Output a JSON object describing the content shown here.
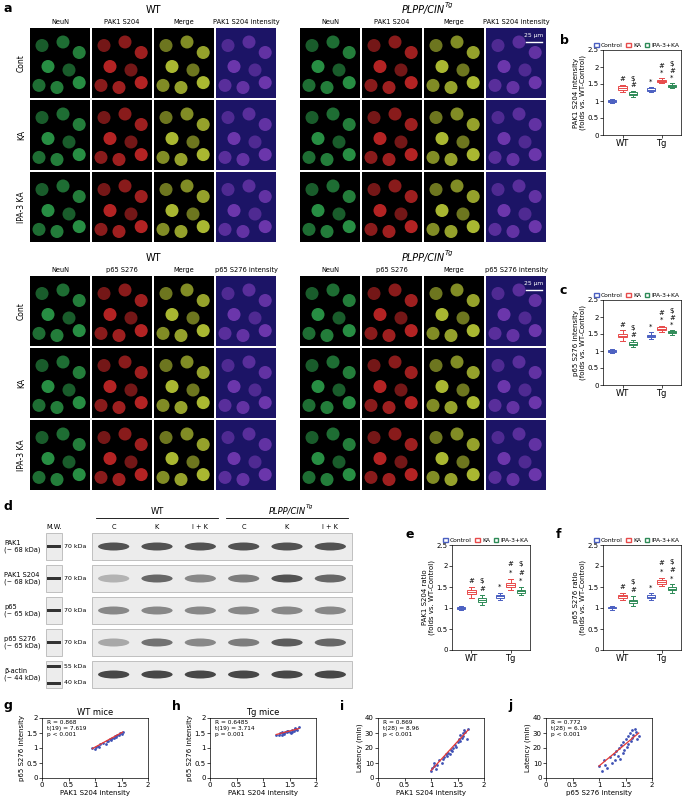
{
  "image_panels": {
    "label": "a",
    "groups": [
      {
        "title": "WT"
      },
      {
        "title_base": "PLPP/CIN",
        "title_sup": "Tg"
      }
    ],
    "rows": [
      "Cont",
      "KA",
      "IPA-3 KA"
    ],
    "sets": [
      {
        "columns": [
          "NeuN",
          "PAK1 S204",
          "Merge",
          "PAK1 S204 intensity"
        ],
        "scale_bar": "25 µm"
      },
      {
        "columns": [
          "NeuN",
          "p65 S276",
          "Merge",
          "p65 S276 intensity"
        ],
        "scale_bar": "25 µm"
      }
    ]
  },
  "blot": {
    "label": "d",
    "mw_header": "M.W.",
    "groups": [
      {
        "title": "WT"
      },
      {
        "title_base": "PLPP/CIN",
        "title_sup": "Tg"
      }
    ],
    "lanes": [
      "C",
      "K",
      "I + K",
      "C",
      "K",
      "I + K"
    ],
    "rows": [
      {
        "name": "PAK1",
        "size": "(~ 68 kDa)",
        "mw": [
          "70 kDa"
        ],
        "intensity": [
          0.8,
          0.8,
          0.8,
          0.8,
          0.8,
          0.8
        ]
      },
      {
        "name": "PAK1 S204",
        "size": "(~ 68 kDa)",
        "mw": [
          "70 kDa"
        ],
        "intensity": [
          0.35,
          0.7,
          0.55,
          0.6,
          0.8,
          0.7
        ]
      },
      {
        "name": "p65",
        "size": "(~ 65 kDa)",
        "mw": [
          "70 kDa"
        ],
        "intensity": [
          0.55,
          0.55,
          0.55,
          0.55,
          0.55,
          0.55
        ]
      },
      {
        "name": "p65 S276",
        "size": "(~ 65 kDa)",
        "mw": [
          "70 kDa"
        ],
        "intensity": [
          0.4,
          0.65,
          0.55,
          0.6,
          0.75,
          0.7
        ]
      },
      {
        "name": "β-actin",
        "size": "(~ 44 kDa)",
        "mw": [
          "55 kDa",
          "40 kDa"
        ],
        "intensity": [
          0.85,
          0.85,
          0.85,
          0.85,
          0.85,
          0.85
        ]
      }
    ]
  },
  "chart_data": [
    {
      "label": "b",
      "type": "box",
      "ylabel": "PAK1 S204 intensity\n(folds vs. WT-Control)",
      "categories": [
        "WT",
        "Tg"
      ],
      "ylim": [
        0,
        2.5
      ],
      "yticks": [
        0,
        0.5,
        1,
        1.5,
        2,
        2.5
      ],
      "legend": "top",
      "series": [
        {
          "name": "Control",
          "color": "#4a5fc1",
          "stats": [
            {
              "whislo": 0.94,
              "q1": 0.97,
              "med": 1.0,
              "q3": 1.03,
              "whishi": 1.05
            },
            {
              "whislo": 1.27,
              "q1": 1.3,
              "med": 1.33,
              "q3": 1.37,
              "whishi": 1.4
            }
          ],
          "marks": [
            [],
            [
              "*"
            ]
          ]
        },
        {
          "name": "KA",
          "color": "#e84a4a",
          "stats": [
            {
              "whislo": 1.27,
              "q1": 1.33,
              "med": 1.38,
              "q3": 1.43,
              "whishi": 1.48
            },
            {
              "whislo": 1.52,
              "q1": 1.56,
              "med": 1.6,
              "q3": 1.63,
              "whishi": 1.67
            }
          ],
          "marks": [
            [
              "#"
            ],
            [
              "*",
              "#"
            ]
          ]
        },
        {
          "name": "IPA-3+KA",
          "color": "#2e8b57",
          "stats": [
            {
              "whislo": 1.12,
              "q1": 1.18,
              "med": 1.22,
              "q3": 1.26,
              "whishi": 1.3
            },
            {
              "whislo": 1.38,
              "q1": 1.41,
              "med": 1.45,
              "q3": 1.48,
              "whishi": 1.52
            }
          ],
          "marks": [
            [
              "#",
              "$"
            ],
            [
              "*",
              "#",
              "$"
            ]
          ]
        }
      ]
    },
    {
      "label": "c",
      "type": "box",
      "ylabel": "p65 S276 intensity\n(folds vs. WT-Control)",
      "categories": [
        "WT",
        "Tg"
      ],
      "ylim": [
        0,
        2.5
      ],
      "yticks": [
        0,
        0.5,
        1,
        1.5,
        2,
        2.5
      ],
      "legend": "top",
      "series": [
        {
          "name": "Control",
          "color": "#4a5fc1",
          "stats": [
            {
              "whislo": 0.95,
              "q1": 0.98,
              "med": 1.0,
              "q3": 1.02,
              "whishi": 1.05
            },
            {
              "whislo": 1.35,
              "q1": 1.42,
              "med": 1.45,
              "q3": 1.48,
              "whishi": 1.55
            }
          ],
          "marks": [
            [],
            [
              "*"
            ]
          ]
        },
        {
          "name": "KA",
          "color": "#e84a4a",
          "stats": [
            {
              "whislo": 1.3,
              "q1": 1.4,
              "med": 1.45,
              "q3": 1.5,
              "whishi": 1.62
            },
            {
              "whislo": 1.55,
              "q1": 1.62,
              "med": 1.66,
              "q3": 1.7,
              "whishi": 1.75
            }
          ],
          "marks": [
            [
              "#"
            ],
            [
              "*",
              "#"
            ]
          ]
        },
        {
          "name": "IPA-3+KA",
          "color": "#2e8b57",
          "stats": [
            {
              "whislo": 1.12,
              "q1": 1.18,
              "med": 1.22,
              "q3": 1.26,
              "whishi": 1.32
            },
            {
              "whislo": 1.47,
              "q1": 1.52,
              "med": 1.55,
              "q3": 1.58,
              "whishi": 1.62
            }
          ],
          "marks": [
            [
              "#",
              "$"
            ],
            [
              "*",
              "#",
              "$"
            ]
          ]
        }
      ]
    },
    {
      "label": "e",
      "type": "box",
      "ylabel": "PAK1 S204 ratio\n(folds vs. WT-Control)",
      "categories": [
        "WT",
        "Tg"
      ],
      "ylim": [
        0,
        2.5
      ],
      "yticks": [
        0,
        0.5,
        1,
        1.5,
        2,
        2.5
      ],
      "legend": "top",
      "series": [
        {
          "name": "Control",
          "color": "#4a5fc1",
          "stats": [
            {
              "whislo": 0.95,
              "q1": 0.98,
              "med": 1.0,
              "q3": 1.02,
              "whishi": 1.05
            },
            {
              "whislo": 1.18,
              "q1": 1.24,
              "med": 1.28,
              "q3": 1.31,
              "whishi": 1.36
            }
          ],
          "marks": [
            [],
            [
              "*"
            ]
          ]
        },
        {
          "name": "KA",
          "color": "#e84a4a",
          "stats": [
            {
              "whislo": 1.25,
              "q1": 1.33,
              "med": 1.38,
              "q3": 1.43,
              "whishi": 1.5
            },
            {
              "whislo": 1.42,
              "q1": 1.5,
              "med": 1.55,
              "q3": 1.6,
              "whishi": 1.7
            }
          ],
          "marks": [
            [
              "#"
            ],
            [
              "*",
              "#"
            ]
          ]
        },
        {
          "name": "IPA-3+KA",
          "color": "#2e8b57",
          "stats": [
            {
              "whislo": 1.08,
              "q1": 1.15,
              "med": 1.2,
              "q3": 1.24,
              "whishi": 1.3
            },
            {
              "whislo": 1.3,
              "q1": 1.36,
              "med": 1.4,
              "q3": 1.44,
              "whishi": 1.5
            }
          ],
          "marks": [
            [
              "#",
              "$"
            ],
            [
              "*",
              "#",
              "$"
            ]
          ]
        }
      ]
    },
    {
      "label": "f",
      "type": "box",
      "ylabel": "p65 S276 ratio\n(folds vs. WT-Control)",
      "categories": [
        "WT",
        "Tg"
      ],
      "ylim": [
        0,
        2.5
      ],
      "yticks": [
        0,
        0.5,
        1,
        1.5,
        2,
        2.5
      ],
      "legend": "top",
      "series": [
        {
          "name": "Control",
          "color": "#4a5fc1",
          "stats": [
            {
              "whislo": 0.96,
              "q1": 0.99,
              "med": 1.0,
              "q3": 1.02,
              "whishi": 1.05
            },
            {
              "whislo": 1.2,
              "q1": 1.24,
              "med": 1.27,
              "q3": 1.3,
              "whishi": 1.35
            }
          ],
          "marks": [
            [],
            [
              "*"
            ]
          ]
        },
        {
          "name": "KA",
          "color": "#e84a4a",
          "stats": [
            {
              "whislo": 1.2,
              "q1": 1.25,
              "med": 1.28,
              "q3": 1.31,
              "whishi": 1.36
            },
            {
              "whislo": 1.52,
              "q1": 1.58,
              "med": 1.62,
              "q3": 1.66,
              "whishi": 1.72
            }
          ],
          "marks": [
            [
              "#"
            ],
            [
              "*",
              "#"
            ]
          ]
        },
        {
          "name": "IPA-3+KA",
          "color": "#2e8b57",
          "stats": [
            {
              "whislo": 1.05,
              "q1": 1.13,
              "med": 1.17,
              "q3": 1.2,
              "whishi": 1.28
            },
            {
              "whislo": 1.35,
              "q1": 1.42,
              "med": 1.46,
              "q3": 1.5,
              "whishi": 1.56
            }
          ],
          "marks": [
            [
              "#",
              "$"
            ],
            [
              "*",
              "#",
              "$"
            ]
          ]
        }
      ]
    },
    {
      "label": "g",
      "type": "scatter",
      "title": "WT mice",
      "xlabel": "PAK1 S204 intensity",
      "ylabel": "p65 S276 intensity",
      "color": "#3f51b5",
      "x": [
        0.95,
        1.0,
        1.02,
        1.05,
        1.08,
        1.1,
        1.15,
        1.2,
        1.22,
        1.25,
        1.28,
        1.3,
        1.32,
        1.35,
        1.38,
        1.4,
        1.42,
        1.45,
        1.48,
        1.5,
        1.52
      ],
      "values": [
        1.0,
        0.98,
        1.05,
        1.08,
        1.02,
        1.12,
        1.18,
        1.15,
        1.22,
        1.25,
        1.3,
        1.28,
        1.35,
        1.32,
        1.4,
        1.38,
        1.45,
        1.42,
        1.5,
        1.48,
        1.55
      ],
      "fit": {
        "x": [
          0.95,
          1.52
        ],
        "values": [
          0.98,
          1.53
        ],
        "color": "#e53935"
      },
      "annotation": "R = 0.868\nt(19) = 7.619\np < 0.001",
      "xlim": [
        0,
        2
      ],
      "xticks": [
        0,
        0.5,
        1,
        1.5,
        2
      ],
      "ylim": [
        0,
        2
      ],
      "yticks": [
        0,
        0.5,
        1,
        1.5,
        2
      ]
    },
    {
      "label": "h",
      "type": "scatter",
      "title": "Tg mice",
      "xlabel": "PAK1 S204 intensity",
      "ylabel": "p65 S276 intensity",
      "color": "#3f51b5",
      "x": [
        1.25,
        1.3,
        1.32,
        1.35,
        1.38,
        1.4,
        1.42,
        1.45,
        1.48,
        1.5,
        1.52,
        1.55,
        1.58,
        1.6,
        1.62,
        1.65,
        1.35,
        1.45,
        1.55,
        1.6,
        1.68
      ],
      "values": [
        1.42,
        1.45,
        1.5,
        1.45,
        1.5,
        1.48,
        1.55,
        1.52,
        1.58,
        1.55,
        1.5,
        1.6,
        1.58,
        1.62,
        1.65,
        1.6,
        1.55,
        1.58,
        1.52,
        1.68,
        1.7
      ],
      "fit": {
        "x": [
          1.25,
          1.68
        ],
        "values": [
          1.45,
          1.65
        ],
        "color": "#e53935"
      },
      "annotation": "R = 0.6485\nt(19) = 3.714\np = 0.001",
      "xlim": [
        0,
        2
      ],
      "xticks": [
        0,
        0.5,
        1,
        1.5,
        2
      ],
      "ylim": [
        0,
        2
      ],
      "yticks": [
        0,
        0.5,
        1,
        1.5,
        2
      ]
    },
    {
      "label": "i",
      "type": "scatter",
      "xlabel": "PAK1 S204 intensity",
      "ylabel": "Latency (min)",
      "color": "#3f51b5",
      "x": [
        1.0,
        1.02,
        1.05,
        1.05,
        1.1,
        1.12,
        1.15,
        1.2,
        1.22,
        1.25,
        1.28,
        1.3,
        1.32,
        1.35,
        1.38,
        1.4,
        1.42,
        1.45,
        1.48,
        1.5,
        1.52,
        1.55,
        1.55,
        1.58,
        1.6,
        1.6,
        1.62,
        1.65,
        1.68,
        1.7
      ],
      "values": [
        5,
        7,
        8,
        10,
        6,
        9,
        12,
        10,
        13,
        14,
        16,
        15,
        17,
        16,
        19,
        18,
        20,
        22,
        21,
        24,
        26,
        25,
        29,
        27,
        30,
        28,
        32,
        31,
        26,
        33
      ],
      "fit": {
        "x": [
          1.0,
          1.7
        ],
        "values": [
          5,
          32
        ],
        "color": "#e53935"
      },
      "annotation": "R = 0.869\nt(28) = 8.96\np < 0.001",
      "xlim": [
        0,
        2
      ],
      "xticks": [
        0,
        0.5,
        1,
        1.5,
        2
      ],
      "ylim": [
        0,
        40
      ],
      "yticks": [
        0,
        10,
        20,
        30,
        40
      ]
    },
    {
      "label": "j",
      "type": "scatter",
      "xlabel": "p65 S276 intensity",
      "ylabel": "Latency (min)",
      "color": "#3f51b5",
      "x": [
        1.0,
        1.05,
        1.1,
        1.12,
        1.15,
        1.2,
        1.25,
        1.28,
        1.3,
        1.32,
        1.35,
        1.38,
        1.4,
        1.42,
        1.45,
        1.45,
        1.48,
        1.5,
        1.52,
        1.55,
        1.55,
        1.58,
        1.6,
        1.62,
        1.62,
        1.65,
        1.68,
        1.7,
        1.72,
        1.75
      ],
      "values": [
        8,
        5,
        12,
        9,
        7,
        14,
        10,
        16,
        12,
        18,
        15,
        20,
        13,
        22,
        17,
        24,
        19,
        26,
        21,
        28,
        23,
        30,
        25,
        32,
        27,
        29,
        33,
        31,
        26,
        28
      ],
      "fit": {
        "x": [
          1.0,
          1.75
        ],
        "values": [
          8,
          30
        ],
        "color": "#e53935"
      },
      "annotation": "R = 0.772\nt(28) = 6.19\np < 0.001",
      "xlim": [
        0,
        2
      ],
      "xticks": [
        0,
        0.5,
        1,
        1.5,
        2
      ],
      "ylim": [
        0,
        40
      ],
      "yticks": [
        0,
        10,
        20,
        30,
        40
      ]
    }
  ]
}
